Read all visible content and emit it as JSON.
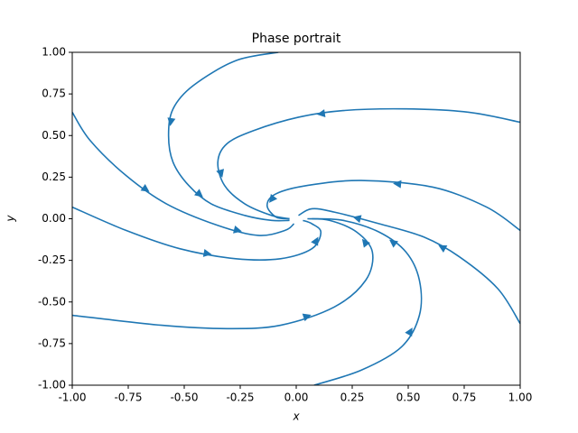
{
  "chart_data": {
    "type": "streamplot",
    "title": "Phase portrait",
    "xlabel": "x",
    "ylabel": "y",
    "color": "#1f77b4",
    "xlim": [
      -1,
      1
    ],
    "ylim": [
      -1,
      1
    ],
    "xticks": [
      {
        "value": -1,
        "label": "-1.00"
      },
      {
        "value": -0.75,
        "label": "-0.75"
      },
      {
        "value": -0.5,
        "label": "-0.50"
      },
      {
        "value": -0.25,
        "label": "-0.25"
      },
      {
        "value": 0,
        "label": "0.00"
      },
      {
        "value": 0.25,
        "label": "0.25"
      },
      {
        "value": 0.5,
        "label": "0.50"
      },
      {
        "value": 0.75,
        "label": "0.75"
      },
      {
        "value": 1,
        "label": "1.00"
      }
    ],
    "yticks": [
      {
        "value": -1,
        "label": "-1.00"
      },
      {
        "value": -0.75,
        "label": "-0.75"
      },
      {
        "value": -0.5,
        "label": "-0.50"
      },
      {
        "value": -0.25,
        "label": "-0.25"
      },
      {
        "value": 0,
        "label": "0.00"
      },
      {
        "value": 0.25,
        "label": "0.25"
      },
      {
        "value": 0.5,
        "label": "0.50"
      },
      {
        "value": 0.75,
        "label": "0.75"
      },
      {
        "value": 1,
        "label": "1.00"
      }
    ],
    "series": [
      {
        "x": [
          -0.08,
          -0.27,
          -0.46,
          -0.55,
          -0.57,
          -0.55,
          -0.48,
          -0.38,
          -0.23,
          -0.11,
          -0.03
        ],
        "y": [
          1.0,
          0.95,
          0.8,
          0.66,
          0.5,
          0.34,
          0.2,
          0.09,
          0.02,
          -0.01,
          -0.01
        ]
      },
      {
        "x": [
          1.0,
          0.77,
          0.49,
          0.21,
          0.01,
          -0.19,
          -0.31,
          -0.35,
          -0.32,
          -0.23,
          -0.11,
          -0.03
        ],
        "y": [
          0.58,
          0.64,
          0.66,
          0.65,
          0.61,
          0.53,
          0.45,
          0.34,
          0.2,
          0.09,
          0.02,
          0.0
        ]
      },
      {
        "x": [
          1.0,
          0.85,
          0.61,
          0.29,
          0.05,
          -0.09,
          -0.13,
          -0.09,
          -0.03
        ],
        "y": [
          -0.07,
          0.07,
          0.19,
          0.23,
          0.2,
          0.15,
          0.08,
          0.01,
          0.0
        ]
      },
      {
        "x": [
          1.0,
          0.9,
          0.73,
          0.57,
          0.37,
          0.17,
          0.07,
          0.01
        ],
        "y": [
          -0.63,
          -0.42,
          -0.23,
          -0.11,
          -0.03,
          0.04,
          0.06,
          0.02
        ]
      },
      {
        "x": [
          0.08,
          0.29,
          0.47,
          0.55,
          0.55,
          0.49,
          0.37,
          0.21,
          0.07
        ],
        "y": [
          -1.0,
          -0.91,
          -0.77,
          -0.58,
          -0.37,
          -0.2,
          -0.08,
          -0.01,
          0.0
        ]
      },
      {
        "x": [
          -1.0,
          -0.6,
          -0.31,
          -0.07,
          0.17,
          0.31,
          0.34,
          0.27,
          0.15,
          0.05
        ],
        "y": [
          -0.58,
          -0.64,
          -0.66,
          -0.64,
          -0.53,
          -0.37,
          -0.2,
          -0.08,
          -0.01,
          0.0
        ]
      },
      {
        "x": [
          -1.0,
          -0.76,
          -0.52,
          -0.27,
          -0.07,
          0.07,
          0.11,
          0.07,
          0.03
        ],
        "y": [
          0.07,
          -0.07,
          -0.18,
          -0.24,
          -0.24,
          -0.18,
          -0.08,
          -0.03,
          -0.01
        ]
      },
      {
        "x": [
          -1.0,
          -0.92,
          -0.76,
          -0.58,
          -0.35,
          -0.17,
          -0.05,
          -0.01
        ],
        "y": [
          0.64,
          0.47,
          0.26,
          0.09,
          -0.04,
          -0.1,
          -0.07,
          -0.03
        ]
      }
    ]
  }
}
